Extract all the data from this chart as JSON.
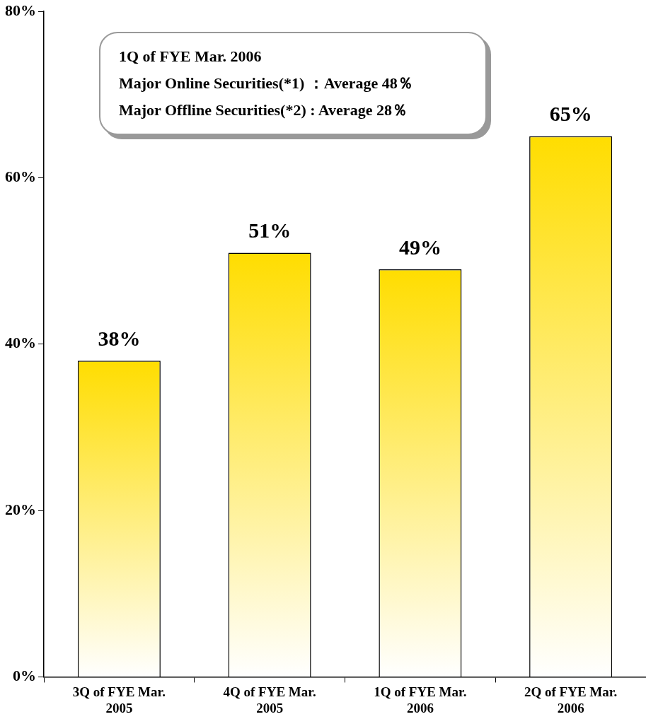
{
  "chart_data": {
    "type": "bar",
    "categories": [
      "3Q of FYE Mar. 2005",
      "4Q of FYE Mar. 2005",
      "1Q of FYE Mar. 2006",
      "2Q of FYE Mar. 2006"
    ],
    "values": [
      38,
      51,
      49,
      65
    ],
    "value_labels": [
      "38%",
      "51%",
      "49%",
      "65%"
    ],
    "color": "#ffdd00",
    "ylim": [
      0,
      80
    ],
    "yticks": [
      {
        "value": 0,
        "label": "0%"
      },
      {
        "value": 20,
        "label": "20%"
      },
      {
        "value": 40,
        "label": "40%"
      },
      {
        "value": 60,
        "label": "60%"
      },
      {
        "value": 80,
        "label": "80%"
      }
    ],
    "grid": false,
    "legend": false,
    "annotations": [
      "1Q of FYE Mar. 2006",
      "Major Online Securities(*1) ：Average 48％",
      "Major Offline Securities(*2) : Average 28％"
    ]
  }
}
